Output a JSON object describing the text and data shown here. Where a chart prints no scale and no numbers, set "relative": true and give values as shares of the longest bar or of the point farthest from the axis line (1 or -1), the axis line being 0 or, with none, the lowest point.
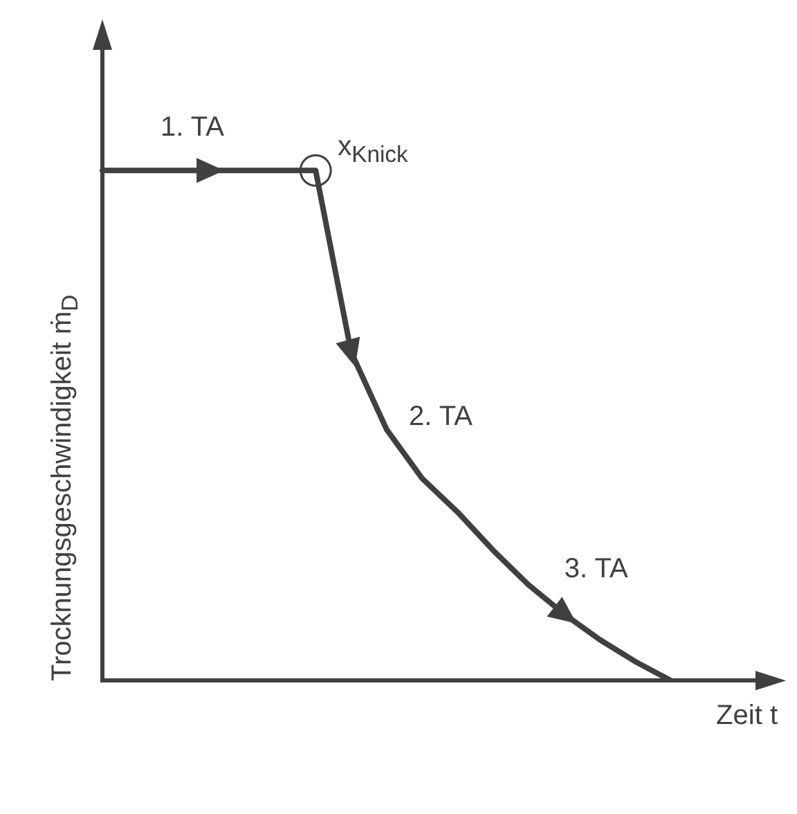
{
  "chart_data": {
    "type": "line",
    "relative": true,
    "xlabel": "Zeit t",
    "ylabel": "Trocknungsgeschwindigkeit ṁ$_{D}$",
    "categories": [
      null,
      null,
      null,
      null,
      null,
      null,
      null,
      null,
      null,
      null,
      null,
      null,
      null,
      null,
      null,
      null,
      null,
      null,
      null,
      null
    ],
    "values": [
      1,
      1,
      1,
      1,
      1,
      1,
      1,
      0.644,
      0.492,
      0.396,
      0.33,
      0.255,
      0.187,
      0.13,
      0.08,
      0.037,
      0,
      null,
      null,
      null
    ],
    "color": "#404040",
    "marker": "none",
    "line_style": "solid",
    "grid": false,
    "legend": false,
    "annotations": [
      "1. TA",
      "x$_{Knick}$",
      "2. TA",
      "3. TA"
    ]
  }
}
